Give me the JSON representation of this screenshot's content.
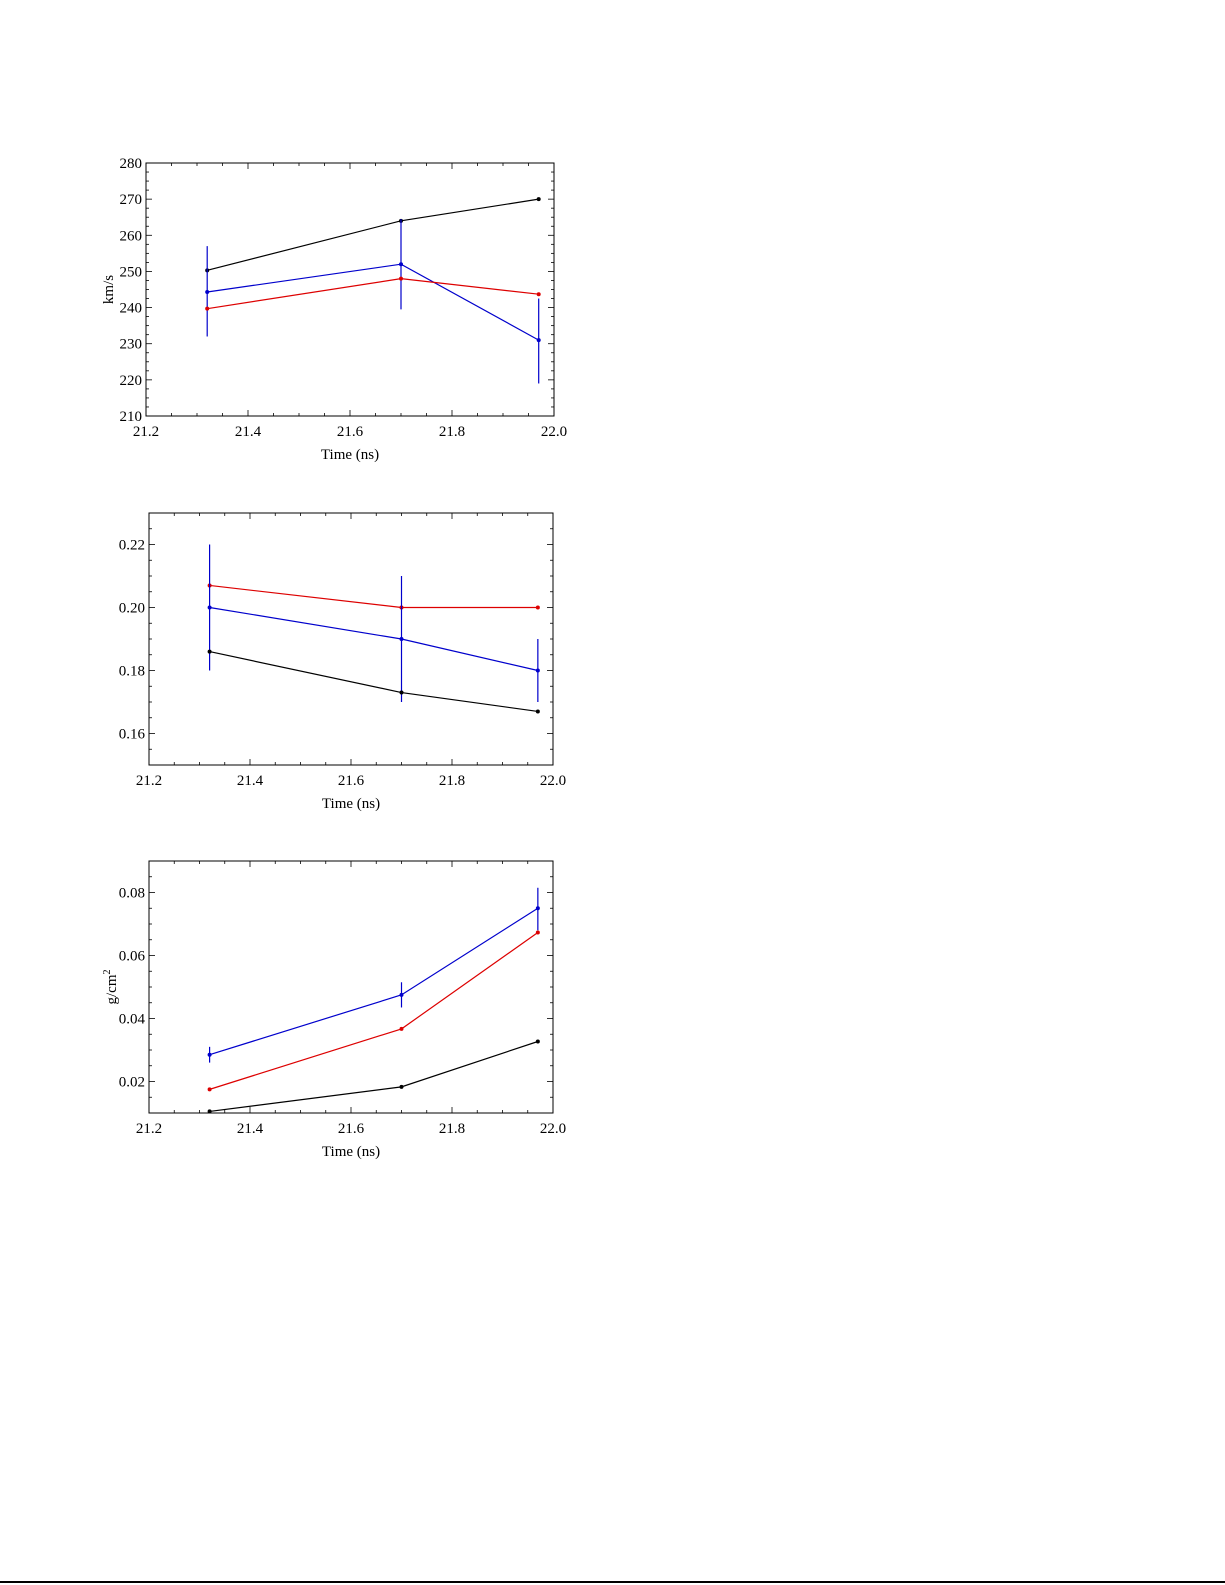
{
  "chart_data": [
    {
      "type": "line",
      "title": "",
      "xlabel": "Time (ns)",
      "ylabel": "km/s",
      "ylabel_sup": "",
      "xlim": [
        21.2,
        22.0
      ],
      "ylim": [
        210,
        280
      ],
      "x_ticks": [
        21.2,
        21.4,
        21.6,
        21.8,
        22.0
      ],
      "x_tick_labels": [
        "21.2",
        "21.4",
        "21.6",
        "21.8",
        "22.0"
      ],
      "y_ticks": [
        210,
        220,
        230,
        240,
        250,
        260,
        270,
        280
      ],
      "y_tick_labels": [
        "210",
        "220",
        "230",
        "240",
        "250",
        "260",
        "270",
        "280"
      ],
      "grid": false,
      "series": [
        {
          "color": "#000000",
          "points": [
            [
              21.32,
              250.3
            ],
            [
              21.7,
              264.0
            ],
            [
              21.97,
              270.0
            ]
          ],
          "err": null
        },
        {
          "color": "#0000cc",
          "points": [
            [
              21.32,
              244.3
            ],
            [
              21.7,
              252.0
            ],
            [
              21.97,
              231.0
            ]
          ],
          "err": [
            [
              232,
              257
            ],
            [
              239.5,
              264.5
            ],
            [
              219,
              242.5
            ]
          ]
        },
        {
          "color": "#dd0000",
          "points": [
            [
              21.32,
              239.7
            ],
            [
              21.7,
              248.0
            ],
            [
              21.97,
              243.7
            ]
          ],
          "err": null
        }
      ]
    },
    {
      "type": "line",
      "title": "",
      "xlabel": "Time (ns)",
      "ylabel": "",
      "ylabel_sup": "",
      "xlim": [
        21.2,
        22.0
      ],
      "ylim": [
        0.15,
        0.23
      ],
      "x_ticks": [
        21.2,
        21.4,
        21.6,
        21.8,
        22.0
      ],
      "x_tick_labels": [
        "21.2",
        "21.4",
        "21.6",
        "21.8",
        "22.0"
      ],
      "y_ticks": [
        0.16,
        0.18,
        0.2,
        0.22
      ],
      "y_tick_labels": [
        "0.16",
        "0.18",
        "0.20",
        "0.22"
      ],
      "grid": false,
      "series": [
        {
          "color": "#dd0000",
          "points": [
            [
              21.32,
              0.207
            ],
            [
              21.7,
              0.2
            ],
            [
              21.97,
              0.2
            ]
          ],
          "err": null
        },
        {
          "color": "#0000cc",
          "points": [
            [
              21.32,
              0.2
            ],
            [
              21.7,
              0.19
            ],
            [
              21.97,
              0.18
            ]
          ],
          "err": [
            [
              0.18,
              0.22
            ],
            [
              0.17,
              0.21
            ],
            [
              0.17,
              0.19
            ]
          ]
        },
        {
          "color": "#000000",
          "points": [
            [
              21.32,
              0.186
            ],
            [
              21.7,
              0.173
            ],
            [
              21.97,
              0.167
            ]
          ],
          "err": null
        }
      ]
    },
    {
      "type": "line",
      "title": "",
      "xlabel": "Time (ns)",
      "ylabel": "g/cm",
      "ylabel_sup": "2",
      "xlim": [
        21.2,
        22.0
      ],
      "ylim": [
        0.01,
        0.09
      ],
      "x_ticks": [
        21.2,
        21.4,
        21.6,
        21.8,
        22.0
      ],
      "x_tick_labels": [
        "21.2",
        "21.4",
        "21.6",
        "21.8",
        "22.0"
      ],
      "y_ticks": [
        0.02,
        0.04,
        0.06,
        0.08
      ],
      "y_tick_labels": [
        "0.02",
        "0.04",
        "0.06",
        "0.08"
      ],
      "grid": false,
      "series": [
        {
          "color": "#0000cc",
          "points": [
            [
              21.32,
              0.0285
            ],
            [
              21.7,
              0.0475
            ],
            [
              21.97,
              0.075
            ]
          ],
          "err": [
            [
              0.026,
              0.031
            ],
            [
              0.0435,
              0.0515
            ],
            [
              0.068,
              0.0815
            ]
          ]
        },
        {
          "color": "#dd0000",
          "points": [
            [
              21.32,
              0.0175
            ],
            [
              21.7,
              0.0367
            ],
            [
              21.97,
              0.0673
            ]
          ],
          "err": null
        },
        {
          "color": "#000000",
          "points": [
            [
              21.32,
              0.0105
            ],
            [
              21.7,
              0.0183
            ],
            [
              21.97,
              0.0327
            ]
          ],
          "err": null
        }
      ]
    }
  ]
}
